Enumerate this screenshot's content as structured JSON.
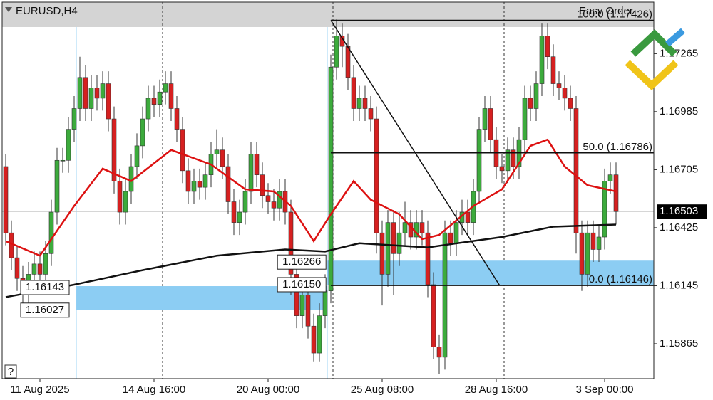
{
  "chart_data": {
    "type": "candlestick",
    "title": "EURUSD,H4",
    "toolbar_label": "Easy Order",
    "help_label": "?",
    "categories": [
      null,
      null,
      null,
      null,
      null,
      null,
      "11 Aug 2025",
      null,
      null,
      null,
      null,
      null,
      null,
      null,
      null,
      null,
      null,
      null,
      null,
      null,
      null,
      null,
      null,
      null,
      null,
      null,
      "14 Aug 16:00",
      null,
      null,
      null,
      null,
      null,
      null,
      null,
      null,
      null,
      null,
      null,
      null,
      null,
      null,
      null,
      null,
      null,
      null,
      null,
      "20 Aug 00:00",
      null,
      null,
      null,
      null,
      null,
      null,
      null,
      null,
      null,
      null,
      null,
      null,
      null,
      null,
      null,
      null,
      null,
      null,
      null,
      "25 Aug 08:00",
      null,
      null,
      null,
      null,
      null,
      null,
      null,
      null,
      null,
      null,
      null,
      null,
      null,
      null,
      null,
      null,
      null,
      null,
      null,
      "28 Aug 16:00",
      null,
      null,
      null,
      null,
      null,
      null,
      null,
      null,
      null,
      null,
      null,
      null,
      null,
      null,
      null,
      null,
      null,
      null,
      "3 Sep 00:00",
      null,
      null
    ],
    "open": [
      1.1672,
      1.164,
      1.1628,
      1.1618,
      1.1612,
      1.162,
      1.1625,
      1.162,
      1.163,
      1.165,
      1.1675,
      1.1675,
      1.169,
      1.17,
      1.1715,
      1.17,
      1.171,
      1.1705,
      1.1712,
      1.1695,
      1.1665,
      1.165,
      1.166,
      1.1672,
      1.1682,
      1.1695,
      1.1705,
      1.1702,
      1.1708,
      1.1712,
      1.17,
      1.169,
      1.167,
      1.166,
      1.1665,
      1.1662,
      1.1668,
      1.1678,
      1.168,
      1.1672,
      1.1655,
      1.1645,
      1.165,
      1.166,
      1.1678,
      1.1668,
      1.1658,
      1.1655,
      1.1652,
      1.166,
      1.165,
      1.162,
      1.16,
      1.161,
      1.1595,
      1.1582,
      1.16,
      1.1612,
      1.172,
      1.1735,
      1.173,
      1.1715,
      1.17,
      1.1705,
      1.17,
      1.1695,
      1.164,
      1.162,
      1.1645,
      1.163,
      1.164,
      1.1645,
      1.1638,
      1.1645,
      1.164,
      1.1615,
      1.1585,
      1.158,
      1.164,
      1.1635,
      1.1645,
      1.165,
      1.1645,
      1.166,
      1.169,
      1.17,
      1.1685,
      1.1672,
      1.167,
      1.168,
      1.1672,
      1.1685,
      1.1705,
      1.17,
      1.1712,
      1.1735,
      1.1725,
      1.1712,
      1.171,
      1.1705,
      1.17,
      1.164,
      1.162,
      1.164,
      1.1632,
      1.1638,
      1.1665,
      1.1668
    ],
    "high": [
      1.1678,
      1.1646,
      1.1634,
      1.1624,
      1.1626,
      1.1631,
      1.1631,
      1.1636,
      1.1656,
      1.1681,
      1.1681,
      1.1696,
      1.1706,
      1.1725,
      1.1721,
      1.1716,
      1.1716,
      1.1718,
      1.1718,
      1.1701,
      1.1671,
      1.1666,
      1.1678,
      1.1688,
      1.1701,
      1.1711,
      1.1711,
      1.1714,
      1.1718,
      1.1718,
      1.1706,
      1.1696,
      1.1676,
      1.1671,
      1.1671,
      1.1674,
      1.1684,
      1.169,
      1.1686,
      1.1678,
      1.1661,
      1.1656,
      1.1666,
      1.1684,
      1.1684,
      1.1674,
      1.1664,
      1.1661,
      1.1666,
      1.1666,
      1.1656,
      1.1626,
      1.1616,
      1.1616,
      1.1601,
      1.1606,
      1.162,
      1.1726,
      1.1743,
      1.1741,
      1.1736,
      1.1721,
      1.1711,
      1.1711,
      1.1706,
      1.1701,
      1.1646,
      1.1651,
      1.1651,
      1.165,
      1.1655,
      1.1651,
      1.1651,
      1.1651,
      1.1646,
      1.1621,
      1.1591,
      1.1646,
      1.1646,
      1.1651,
      1.1656,
      1.1656,
      1.1666,
      1.1696,
      1.1706,
      1.1706,
      1.1691,
      1.1678,
      1.1686,
      1.1686,
      1.1691,
      1.1711,
      1.1711,
      1.1718,
      1.1741,
      1.1741,
      1.1731,
      1.1718,
      1.1716,
      1.1711,
      1.1706,
      1.1646,
      1.1646,
      1.1646,
      1.1644,
      1.1671,
      1.1674,
      1.1674
    ],
    "low": [
      1.1634,
      1.1622,
      1.1612,
      1.1603,
      1.1606,
      1.1614,
      1.1614,
      1.1614,
      1.1624,
      1.1644,
      1.1669,
      1.1669,
      1.1684,
      1.1694,
      1.1694,
      1.1694,
      1.1699,
      1.1699,
      1.1689,
      1.1659,
      1.1644,
      1.1644,
      1.1654,
      1.1666,
      1.1676,
      1.1689,
      1.1696,
      1.1696,
      1.1702,
      1.1694,
      1.1684,
      1.1664,
      1.1654,
      1.1654,
      1.1656,
      1.1656,
      1.1662,
      1.1672,
      1.1666,
      1.1649,
      1.1639,
      1.1639,
      1.1644,
      1.1654,
      1.1662,
      1.1652,
      1.1649,
      1.1646,
      1.1646,
      1.1644,
      1.161,
      1.1594,
      1.1594,
      1.1589,
      1.1578,
      1.1578,
      1.1594,
      1.1606,
      1.1714,
      1.172,
      1.1709,
      1.1694,
      1.1694,
      1.1694,
      1.1689,
      1.163,
      1.1605,
      1.1614,
      1.161,
      1.1624,
      1.1634,
      1.1632,
      1.1632,
      1.1634,
      1.1609,
      1.1579,
      1.1572,
      1.1574,
      1.1629,
      1.1629,
      1.1639,
      1.1639,
      1.1639,
      1.1654,
      1.1684,
      1.1679,
      1.1666,
      1.1664,
      1.1664,
      1.1666,
      1.1666,
      1.1679,
      1.1694,
      1.1694,
      1.1706,
      1.1719,
      1.1706,
      1.1704,
      1.1699,
      1.1694,
      1.163,
      1.1612,
      1.1614,
      1.1626,
      1.1626,
      1.1632,
      1.1659,
      1.1644
    ],
    "close": [
      1.164,
      1.1628,
      1.1618,
      1.1612,
      1.162,
      1.1625,
      1.162,
      1.163,
      1.165,
      1.1675,
      1.1675,
      1.169,
      1.17,
      1.1715,
      1.17,
      1.171,
      1.1705,
      1.1712,
      1.1695,
      1.1665,
      1.165,
      1.166,
      1.1672,
      1.1682,
      1.1695,
      1.1705,
      1.1702,
      1.1708,
      1.1712,
      1.17,
      1.169,
      1.167,
      1.166,
      1.1665,
      1.1662,
      1.1668,
      1.1678,
      1.168,
      1.1672,
      1.1655,
      1.1645,
      1.165,
      1.166,
      1.1678,
      1.1668,
      1.1658,
      1.1655,
      1.1652,
      1.166,
      1.165,
      1.162,
      1.16,
      1.161,
      1.1595,
      1.1582,
      1.16,
      1.1612,
      1.172,
      1.1735,
      1.173,
      1.1715,
      1.17,
      1.1705,
      1.17,
      1.1695,
      1.164,
      1.162,
      1.1645,
      1.163,
      1.164,
      1.1645,
      1.1638,
      1.1645,
      1.164,
      1.1615,
      1.1585,
      1.158,
      1.164,
      1.1635,
      1.1645,
      1.165,
      1.1645,
      1.166,
      1.169,
      1.17,
      1.1685,
      1.1672,
      1.167,
      1.168,
      1.1672,
      1.1685,
      1.1705,
      1.17,
      1.1712,
      1.1735,
      1.1725,
      1.1712,
      1.171,
      1.1705,
      1.17,
      1.164,
      1.162,
      1.164,
      1.1632,
      1.1638,
      1.1665,
      1.1668,
      1.16503
    ],
    "up_color": "#3cab3c",
    "down_color": "#d62020",
    "series": [
      {
        "color": "#dd1111",
        "x": [
          0,
          6,
          12,
          17,
          22,
          29,
          36,
          42,
          47,
          50,
          54,
          57,
          61,
          64,
          69,
          73,
          76,
          82,
          87,
          92,
          95,
          98,
          102,
          107
        ],
        "values": [
          1.1636,
          1.1629,
          1.1653,
          1.1671,
          1.1665,
          1.168,
          1.1673,
          1.1661,
          1.166,
          1.1653,
          1.1636,
          1.1649,
          1.1665,
          1.1656,
          1.1649,
          1.1637,
          1.1639,
          1.1653,
          1.1661,
          1.1682,
          1.1685,
          1.1672,
          1.1663,
          1.166
        ]
      },
      {
        "color": "#111111",
        "x": [
          0,
          12,
          24,
          37,
          49,
          56,
          62,
          74,
          87,
          96,
          107
        ],
        "values": [
          1.1609,
          1.1615,
          1.1622,
          1.1629,
          1.1632,
          1.1631,
          1.1635,
          1.1633,
          1.1638,
          1.1643,
          1.1644
        ]
      }
    ],
    "ylim": [
      1.157,
      1.1751
    ],
    "yticks": [
      1.17265,
      1.16985,
      1.16705,
      1.16425,
      1.16145,
      1.15865
    ],
    "last_price": 1.16503,
    "trendline": {
      "x": [
        57,
        86.6
      ],
      "values": [
        1.17426,
        1.16146
      ]
    },
    "fib_levels": [
      {
        "value": 1.17426,
        "label": "100.0 (1.17426)"
      },
      {
        "value": 1.16786,
        "label": "50.0 (1.16786)"
      },
      {
        "value": 1.16146,
        "label": "0.0 (1.16146)"
      }
    ],
    "fib_start": 57,
    "zones": [
      {
        "from": 56.4,
        "high": 1.16266,
        "low": {
          "value": 1.1615,
          "label": "1.16150"
        }
      },
      {
        "from": 12.4,
        "to": 56.4,
        "high": 1.16143,
        "low": 1.16027
      }
    ]
  }
}
